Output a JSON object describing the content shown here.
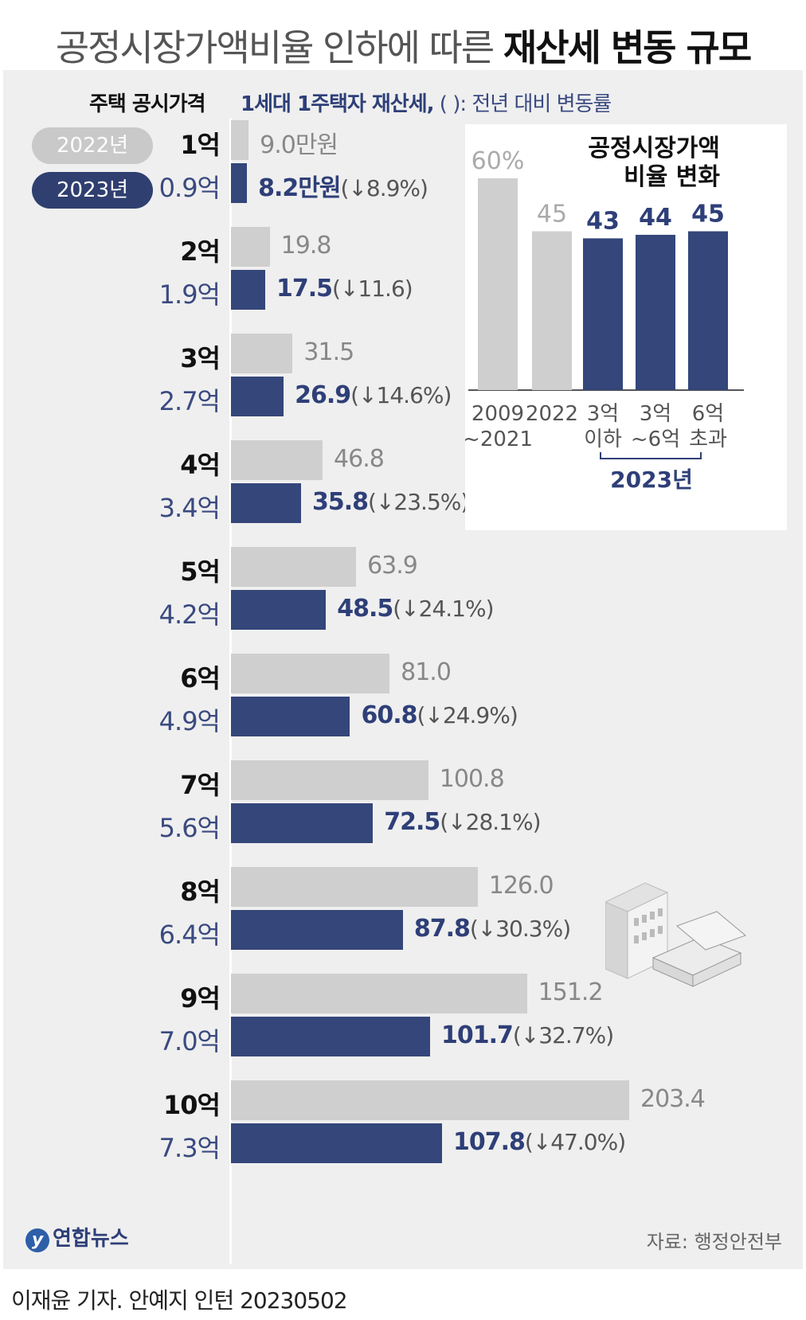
{
  "title_light": "공정시장가액비율 인하에 따른",
  "title_bold": "재산세 변동 규모",
  "header": {
    "left": "주택 공시가격",
    "right_bold": "1세대 1주택자 재산세,",
    "right_rest": "(    ): 전년 대비 변동률"
  },
  "legend": {
    "y2022": "2022년",
    "y2023": "2023년"
  },
  "colors": {
    "bar2022": "#cfcfcf",
    "bar2023": "#34467a",
    "inset_gray": "#cfcfcf",
    "inset_navy": "#34467a"
  },
  "chart_data": [
    {
      "type": "bar",
      "orientation": "horizontal",
      "categories": [
        "1억",
        "2억",
        "3억",
        "4억",
        "5억",
        "6억",
        "7억",
        "8억",
        "9억",
        "10억"
      ],
      "categories_2023": [
        "0.9억",
        "1.9억",
        "2.7억",
        "3.4억",
        "4.2억",
        "4.9억",
        "5.6억",
        "6.4억",
        "7.0억",
        "7.3억"
      ],
      "series": [
        {
          "name": "2022년",
          "values": [
            9.0,
            19.8,
            31.5,
            46.8,
            63.9,
            81.0,
            100.8,
            126.0,
            151.2,
            203.4
          ],
          "labels": [
            "9.0만원",
            "19.8",
            "31.5",
            "46.8",
            "63.9",
            "81.0",
            "100.8",
            "126.0",
            "151.2",
            "203.4"
          ]
        },
        {
          "name": "2023년",
          "values": [
            8.2,
            17.5,
            26.9,
            35.8,
            48.5,
            60.8,
            72.5,
            87.8,
            101.7,
            107.8
          ],
          "labels": [
            "8.2만원",
            "17.5",
            "26.9",
            "35.8",
            "48.5",
            "60.8",
            "72.5",
            "87.8",
            "101.7",
            "107.8"
          ],
          "changes": [
            "(↓8.9%)",
            "(↓11.6)",
            "(↓14.6%)",
            "(↓23.5%)",
            "(↓24.1%)",
            "(↓24.9%)",
            "(↓28.1%)",
            "(↓30.3%)",
            "(↓32.7%)",
            "(↓47.0%)"
          ]
        }
      ],
      "xlim": [
        0,
        203.4
      ]
    },
    {
      "type": "bar",
      "title_line1": "공정시장가액",
      "title_line2": "비율 변화",
      "categories_line1": [
        "2009",
        "2022",
        "3억",
        "3억",
        "6억"
      ],
      "categories_line2": [
        "~2021",
        "",
        "이하",
        "~6억",
        "초과"
      ],
      "values": [
        60,
        45,
        43,
        44,
        45
      ],
      "value_labels": [
        "60%",
        "45",
        "43",
        "44",
        "45"
      ],
      "group_label": "2023년",
      "ylim": [
        0,
        60
      ]
    }
  ],
  "source": "자료: 행정안전부",
  "logo": "연합뉴스",
  "byline": "이재윤 기자. 안예지 인턴  20230502"
}
